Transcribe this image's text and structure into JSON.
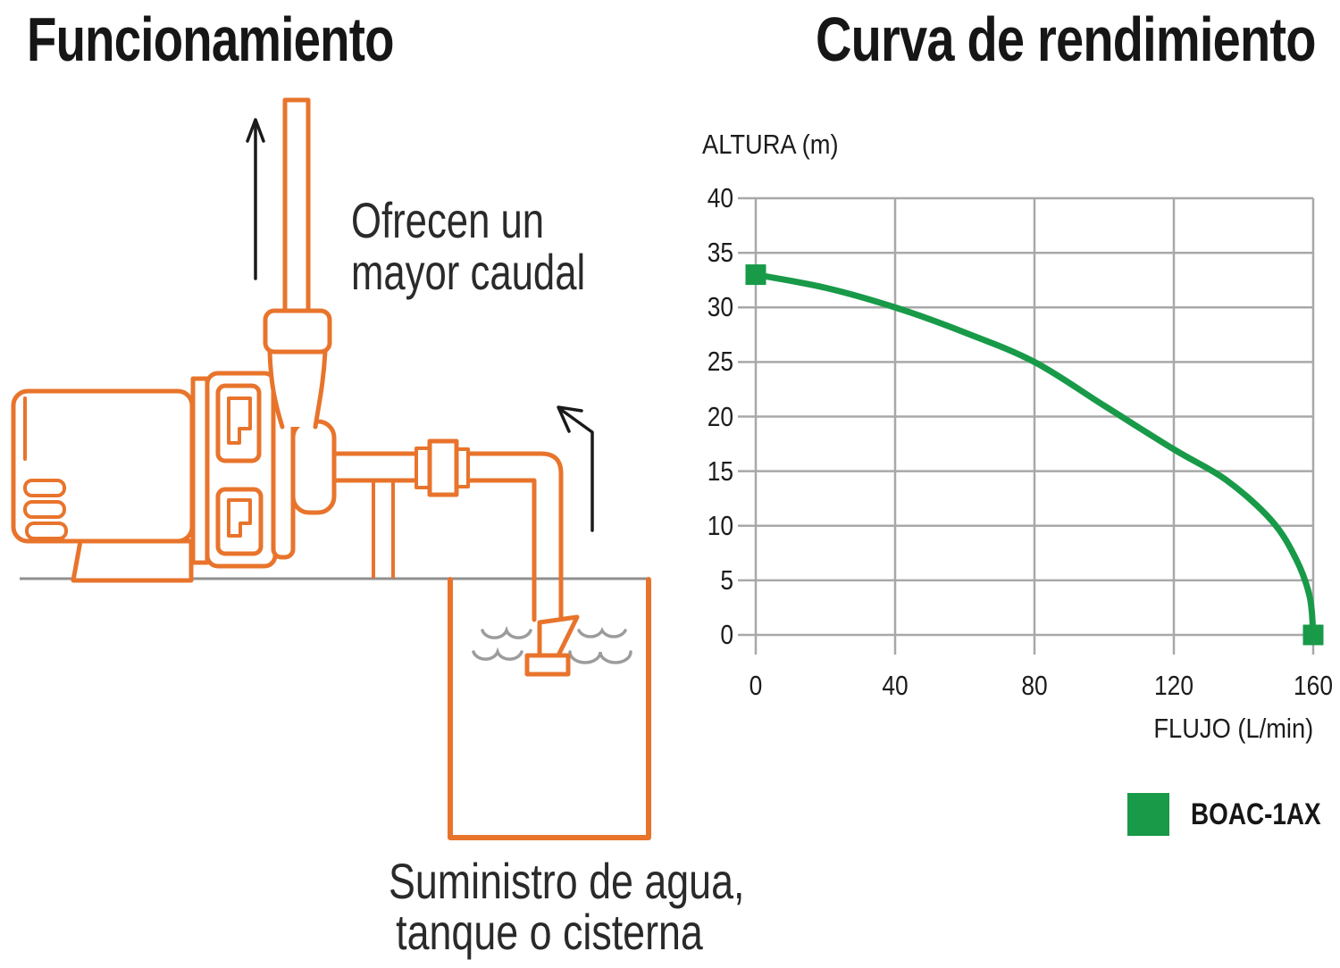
{
  "left_panel": {
    "title": "Funcionamiento",
    "annotation_flow": {
      "line1": "Ofrecen un",
      "line2": "mayor caudal"
    },
    "caption": {
      "line1": "Suministro de agua,",
      "line2": "tanque o cisterna"
    }
  },
  "right_panel": {
    "title": "Curva de rendimiento",
    "legend": {
      "label": "BOAC-1AX",
      "color": "#189A48"
    }
  },
  "chart_data": {
    "type": "line",
    "title": "Curva de rendimiento",
    "xlabel": "FLUJO (L/min)",
    "ylabel": "ALTURA (m)",
    "xlim": [
      0,
      160
    ],
    "ylim": [
      0,
      40
    ],
    "x_ticks": [
      0,
      40,
      80,
      120,
      160
    ],
    "y_ticks": [
      0,
      5,
      10,
      15,
      20,
      25,
      30,
      35,
      40
    ],
    "grid": true,
    "legend_position": "bottom-right",
    "series": [
      {
        "name": "BOAC-1AX",
        "color": "#189A48",
        "marker": "square",
        "points": [
          [
            0,
            33
          ],
          [
            20,
            31.8
          ],
          [
            40,
            30
          ],
          [
            60,
            27.7
          ],
          [
            80,
            25
          ],
          [
            100,
            21
          ],
          [
            120,
            17
          ],
          [
            135,
            14.2
          ],
          [
            148,
            10.5
          ],
          [
            155,
            7
          ],
          [
            159,
            3.5
          ],
          [
            160,
            0
          ]
        ],
        "marker_points": [
          [
            0,
            33
          ],
          [
            160,
            0
          ]
        ]
      }
    ]
  },
  "colors": {
    "diagram_orange": "#E8742C",
    "series_green": "#189A48",
    "grid_gray": "#A8A8A8",
    "ground_gray": "#8F8F8F",
    "wave_gray": "#9C9C9C",
    "arrow_black": "#1A1A1A",
    "text": "#1C1C1C"
  }
}
